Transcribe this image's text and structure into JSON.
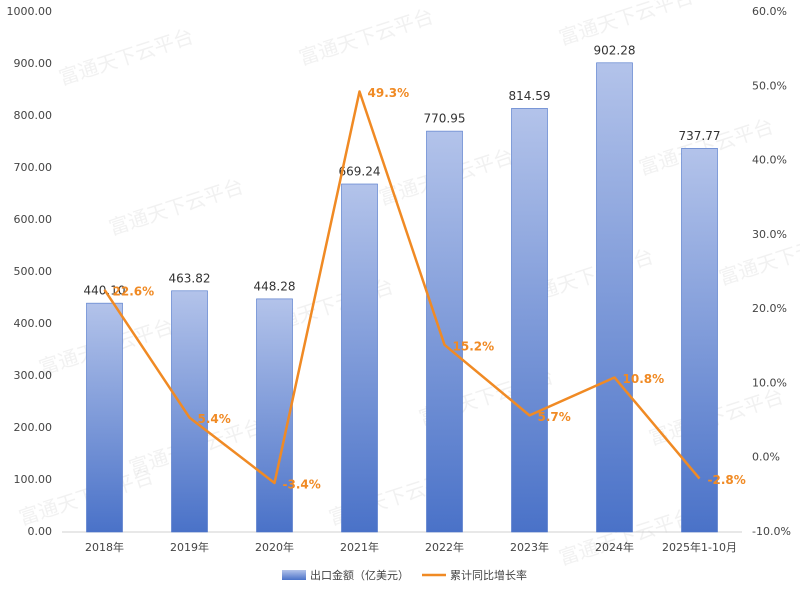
{
  "chart_data": {
    "type": "bar-line",
    "watermark": "富通天下云平台",
    "categories": [
      "2018年",
      "2019年",
      "2020年",
      "2021年",
      "2022年",
      "2023年",
      "2024年",
      "2025年1-10月"
    ],
    "series": [
      {
        "name": "出口金额（亿美元）",
        "type": "bar",
        "color": "#4a72c8",
        "values": [
          440.1,
          463.82,
          448.28,
          669.24,
          770.95,
          814.59,
          902.28,
          737.77
        ],
        "value_labels": [
          "440.10",
          "463.82",
          "448.28",
          "669.24",
          "770.95",
          "814.59",
          "902.28",
          "737.77"
        ]
      },
      {
        "name": "累计同比增长率",
        "type": "line",
        "axis": "y2",
        "color": "#f08a24",
        "values": [
          22.6,
          5.4,
          -3.4,
          49.3,
          15.2,
          5.7,
          10.8,
          -2.8
        ],
        "value_labels": [
          "22.6%",
          "5.4%",
          "-3.4%",
          "49.3%",
          "15.2%",
          "5.7%",
          "10.8%",
          "-2.8%"
        ]
      }
    ],
    "ylim": [
      0,
      1000
    ],
    "yticks": [
      {
        "value": 0,
        "label": "0.00"
      },
      {
        "value": 100,
        "label": "100.00"
      },
      {
        "value": 200,
        "label": "200.00"
      },
      {
        "value": 300,
        "label": "300.00"
      },
      {
        "value": 400,
        "label": "400.00"
      },
      {
        "value": 500,
        "label": "500.00"
      },
      {
        "value": 600,
        "label": "600.00"
      },
      {
        "value": 700,
        "label": "700.00"
      },
      {
        "value": 800,
        "label": "800.00"
      },
      {
        "value": 900,
        "label": "900.00"
      },
      {
        "value": 1000,
        "label": "1000.00"
      }
    ],
    "y2lim": [
      -10,
      60
    ],
    "y2ticks": [
      {
        "value": -10,
        "label": "-10.0%"
      },
      {
        "value": 0,
        "label": "0.0%"
      },
      {
        "value": 10,
        "label": "10.0%"
      },
      {
        "value": 20,
        "label": "20.0%"
      },
      {
        "value": 30,
        "label": "30.0%"
      },
      {
        "value": 40,
        "label": "40.0%"
      },
      {
        "value": 50,
        "label": "50.0%"
      },
      {
        "value": 60,
        "label": "60.0%"
      }
    ]
  }
}
